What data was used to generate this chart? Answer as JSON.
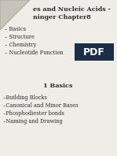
{
  "title_line1": "es and Nucleic Acids -",
  "title_line2": "ninger Chapter8",
  "subtitle_items": [
    "– Basics",
    "– Structure",
    "– Chemistry",
    "– Nucleotide Function"
  ],
  "section_title": "1 Basics",
  "section_items": [
    "–Building Blocks",
    "–Canonical and Minor Bases",
    "–Phosphodiester bonds",
    "–Naming and Drawing"
  ],
  "background_color": "#f0ede8",
  "text_color": "#2a2a2a",
  "title_fontsize": 5.8,
  "body_fontsize": 4.8,
  "section_title_fontsize": 5.8,
  "pdf_box_color": "#1a2f45",
  "pdf_text_color": "#ffffff"
}
